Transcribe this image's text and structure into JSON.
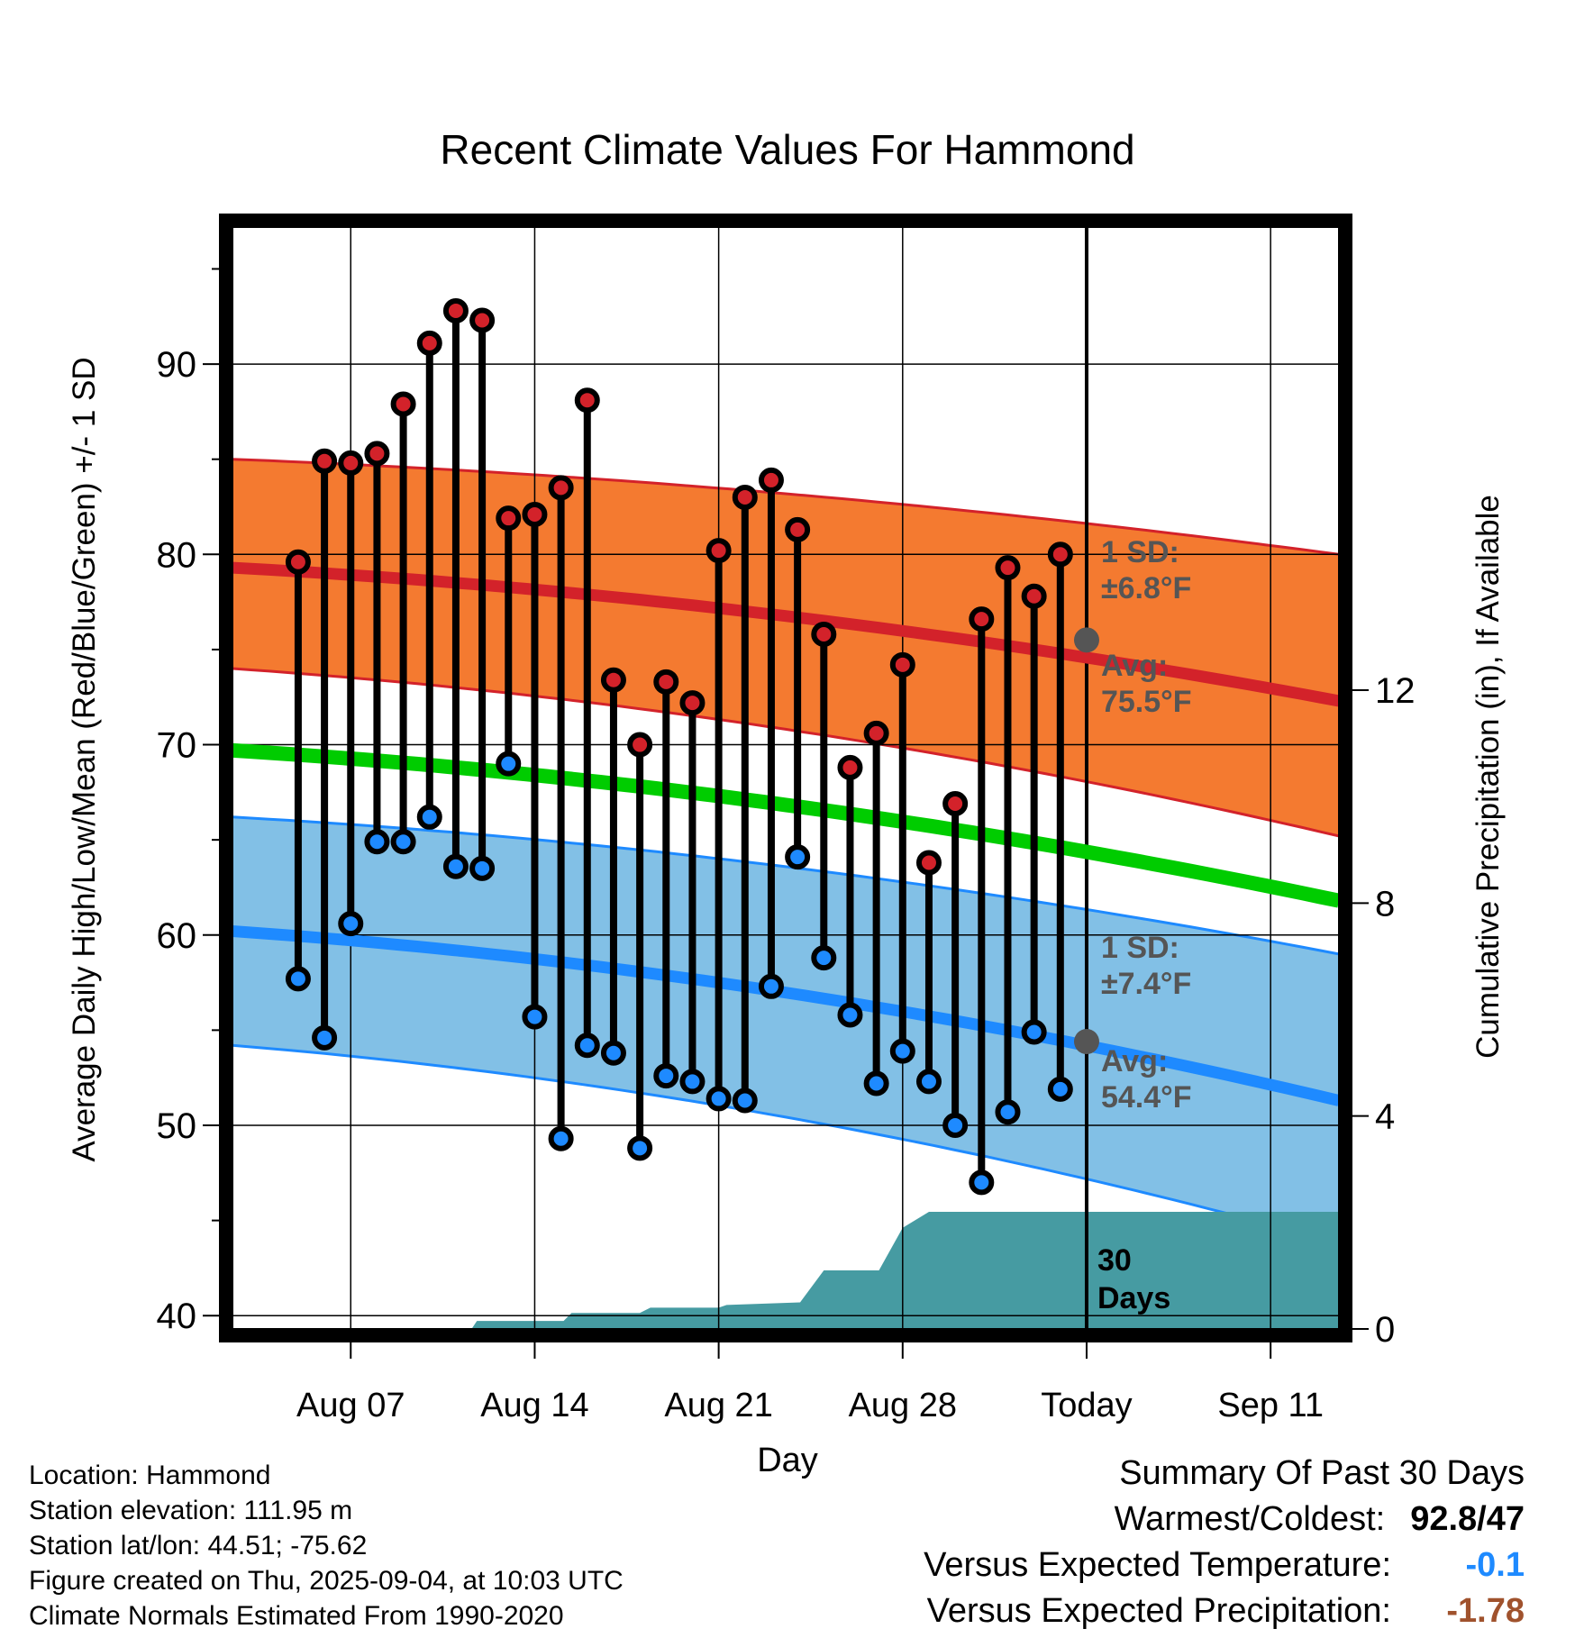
{
  "chart_data": {
    "type": "line",
    "title": "Recent Climate Values For Hammond",
    "xlabel": "Day",
    "ylabel": "Average Daily High/Low/Mean (Red/Blue/Green) +/- 1 SD",
    "y2label": "Cumulative Precipitation (in), If Available",
    "ylim": [
      39.3,
      97.2
    ],
    "y2lim": [
      0,
      20.7
    ],
    "yticks": [
      40,
      50,
      60,
      70,
      80,
      90
    ],
    "y2ticks": [
      0,
      4,
      8,
      12
    ],
    "x_days_range": [
      -32.5,
      9.6
    ],
    "xticks": [
      {
        "day": -28,
        "label": "Aug 07"
      },
      {
        "day": -21,
        "label": "Aug 14"
      },
      {
        "day": -14,
        "label": "Aug 21"
      },
      {
        "day": -7,
        "label": "Aug 28"
      },
      {
        "day": 0,
        "label": "Today"
      },
      {
        "day": 7,
        "label": "Sep 11"
      }
    ],
    "grid": true,
    "observed": {
      "days": [
        -30,
        -29,
        -28,
        -27,
        -26,
        -25,
        -24,
        -23,
        -22,
        -21,
        -20,
        -19,
        -18,
        -17,
        -16,
        -15,
        -14,
        -13,
        -12,
        -11,
        -10,
        -9,
        -8,
        -7,
        -6,
        -5,
        -4,
        -3,
        -2,
        -1
      ],
      "high": [
        79.6,
        84.9,
        84.8,
        85.3,
        87.9,
        91.1,
        92.8,
        92.3,
        81.9,
        82.1,
        83.5,
        88.1,
        73.4,
        70.0,
        73.3,
        72.2,
        80.2,
        83.0,
        83.9,
        81.3,
        75.8,
        68.8,
        70.6,
        74.2,
        63.8,
        66.9,
        76.6,
        79.3,
        77.8,
        80.0
      ],
      "low": [
        57.7,
        54.6,
        60.6,
        64.9,
        64.9,
        66.2,
        63.6,
        63.5,
        69.0,
        55.7,
        49.3,
        54.2,
        53.8,
        48.8,
        52.6,
        52.3,
        51.4,
        51.3,
        57.3,
        64.1,
        58.8,
        55.8,
        52.2,
        53.9,
        52.3,
        50.0,
        47.0,
        50.7,
        54.9,
        51.9
      ]
    },
    "normals": {
      "days": [
        -32.5,
        9.6
      ],
      "avg_high": [
        79.3,
        72.3
      ],
      "avg_high_sd_band": [
        [
          74.0,
          85.0
        ],
        [
          65.2,
          80.0
        ]
      ],
      "avg_low": [
        60.2,
        51.3
      ],
      "avg_low_sd_band": [
        [
          54.2,
          66.2
        ],
        [
          43.8,
          59.0
        ]
      ],
      "avg_mean": [
        69.7,
        61.8
      ]
    },
    "precip_cumulative": [
      [
        -32.5,
        0
      ],
      [
        -23.4,
        0
      ],
      [
        -23.2,
        0.15
      ],
      [
        -19.9,
        0.15
      ],
      [
        -19.6,
        0.3
      ],
      [
        -17.0,
        0.3
      ],
      [
        -16.6,
        0.4
      ],
      [
        -14.0,
        0.4
      ],
      [
        -13.7,
        0.45
      ],
      [
        -10.9,
        0.5
      ],
      [
        -10.0,
        1.1
      ],
      [
        -7.9,
        1.1
      ],
      [
        -7.0,
        1.9
      ],
      [
        -6.0,
        2.2
      ],
      [
        9.6,
        2.2
      ]
    ],
    "colors": {
      "high_band": "#f47a30",
      "high_line": "#d3222a",
      "low_band": "#82c0e6",
      "low_line": "#1e8aff",
      "mean_line": "#00cc00",
      "precip": "#469ba2",
      "annotation": "#555555"
    },
    "annotations": {
      "high_sd_label": "1 SD:",
      "high_sd_value": "±6.8°F",
      "high_avg_label": "Avg:",
      "high_avg_value": "75.5°F",
      "high_avg_today": 75.5,
      "low_sd_label": "1 SD:",
      "low_sd_value": "±7.4°F",
      "low_avg_label": "Avg:",
      "low_avg_value": "54.4°F",
      "low_avg_today": 54.4,
      "precip_label": "30",
      "precip_label2": "Days"
    }
  },
  "footer": {
    "location": "Location: Hammond",
    "elevation": "Station elevation: 111.95 m",
    "latlon": "Station lat/lon: 44.51; -75.62",
    "created": "Figure created on Thu, 2025-09-04, at 10:03 UTC",
    "normals": "Climate Normals Estimated From 1990-2020"
  },
  "summary": {
    "title": "Summary Of Past 30 Days",
    "warm_cold_label": "Warmest/Coldest:",
    "warm_cold_value": "92.8/47",
    "temp_label": "Versus Expected Temperature:",
    "temp_value": "-0.1",
    "temp_color": "#1e8aff",
    "precip_label": "Versus Expected Precipitation:",
    "precip_value": "-1.78",
    "precip_color": "#a0522d"
  }
}
